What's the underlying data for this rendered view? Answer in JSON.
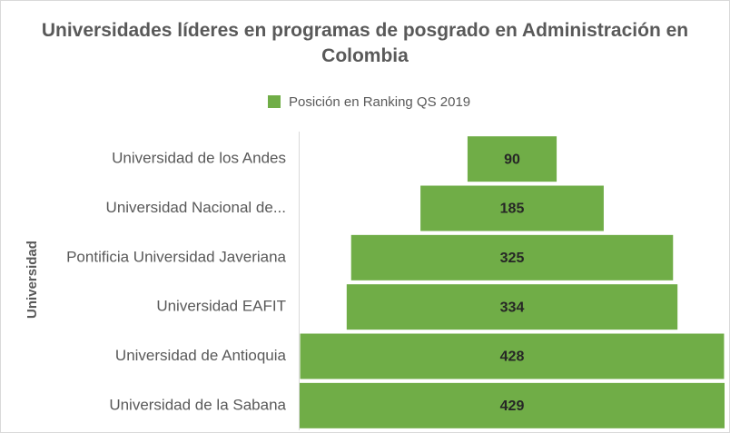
{
  "chart_data": {
    "type": "funnel",
    "title": "Universidades líderes en programas de posgrado en Administración en Colombia",
    "y_label": "Universidad",
    "categories": [
      "Universidad de los Andes",
      "Universidad Nacional de...",
      "Pontificia Universidad Javeriana",
      "Universidad EAFIT",
      "Universidad de Antioquia",
      "Universidad de la Sabana"
    ],
    "series": [
      {
        "name": "Posición en Ranking QS 2019",
        "color": "#70ad47",
        "values": [
          90,
          185,
          325,
          334,
          428,
          429
        ]
      }
    ],
    "legend": "top"
  }
}
